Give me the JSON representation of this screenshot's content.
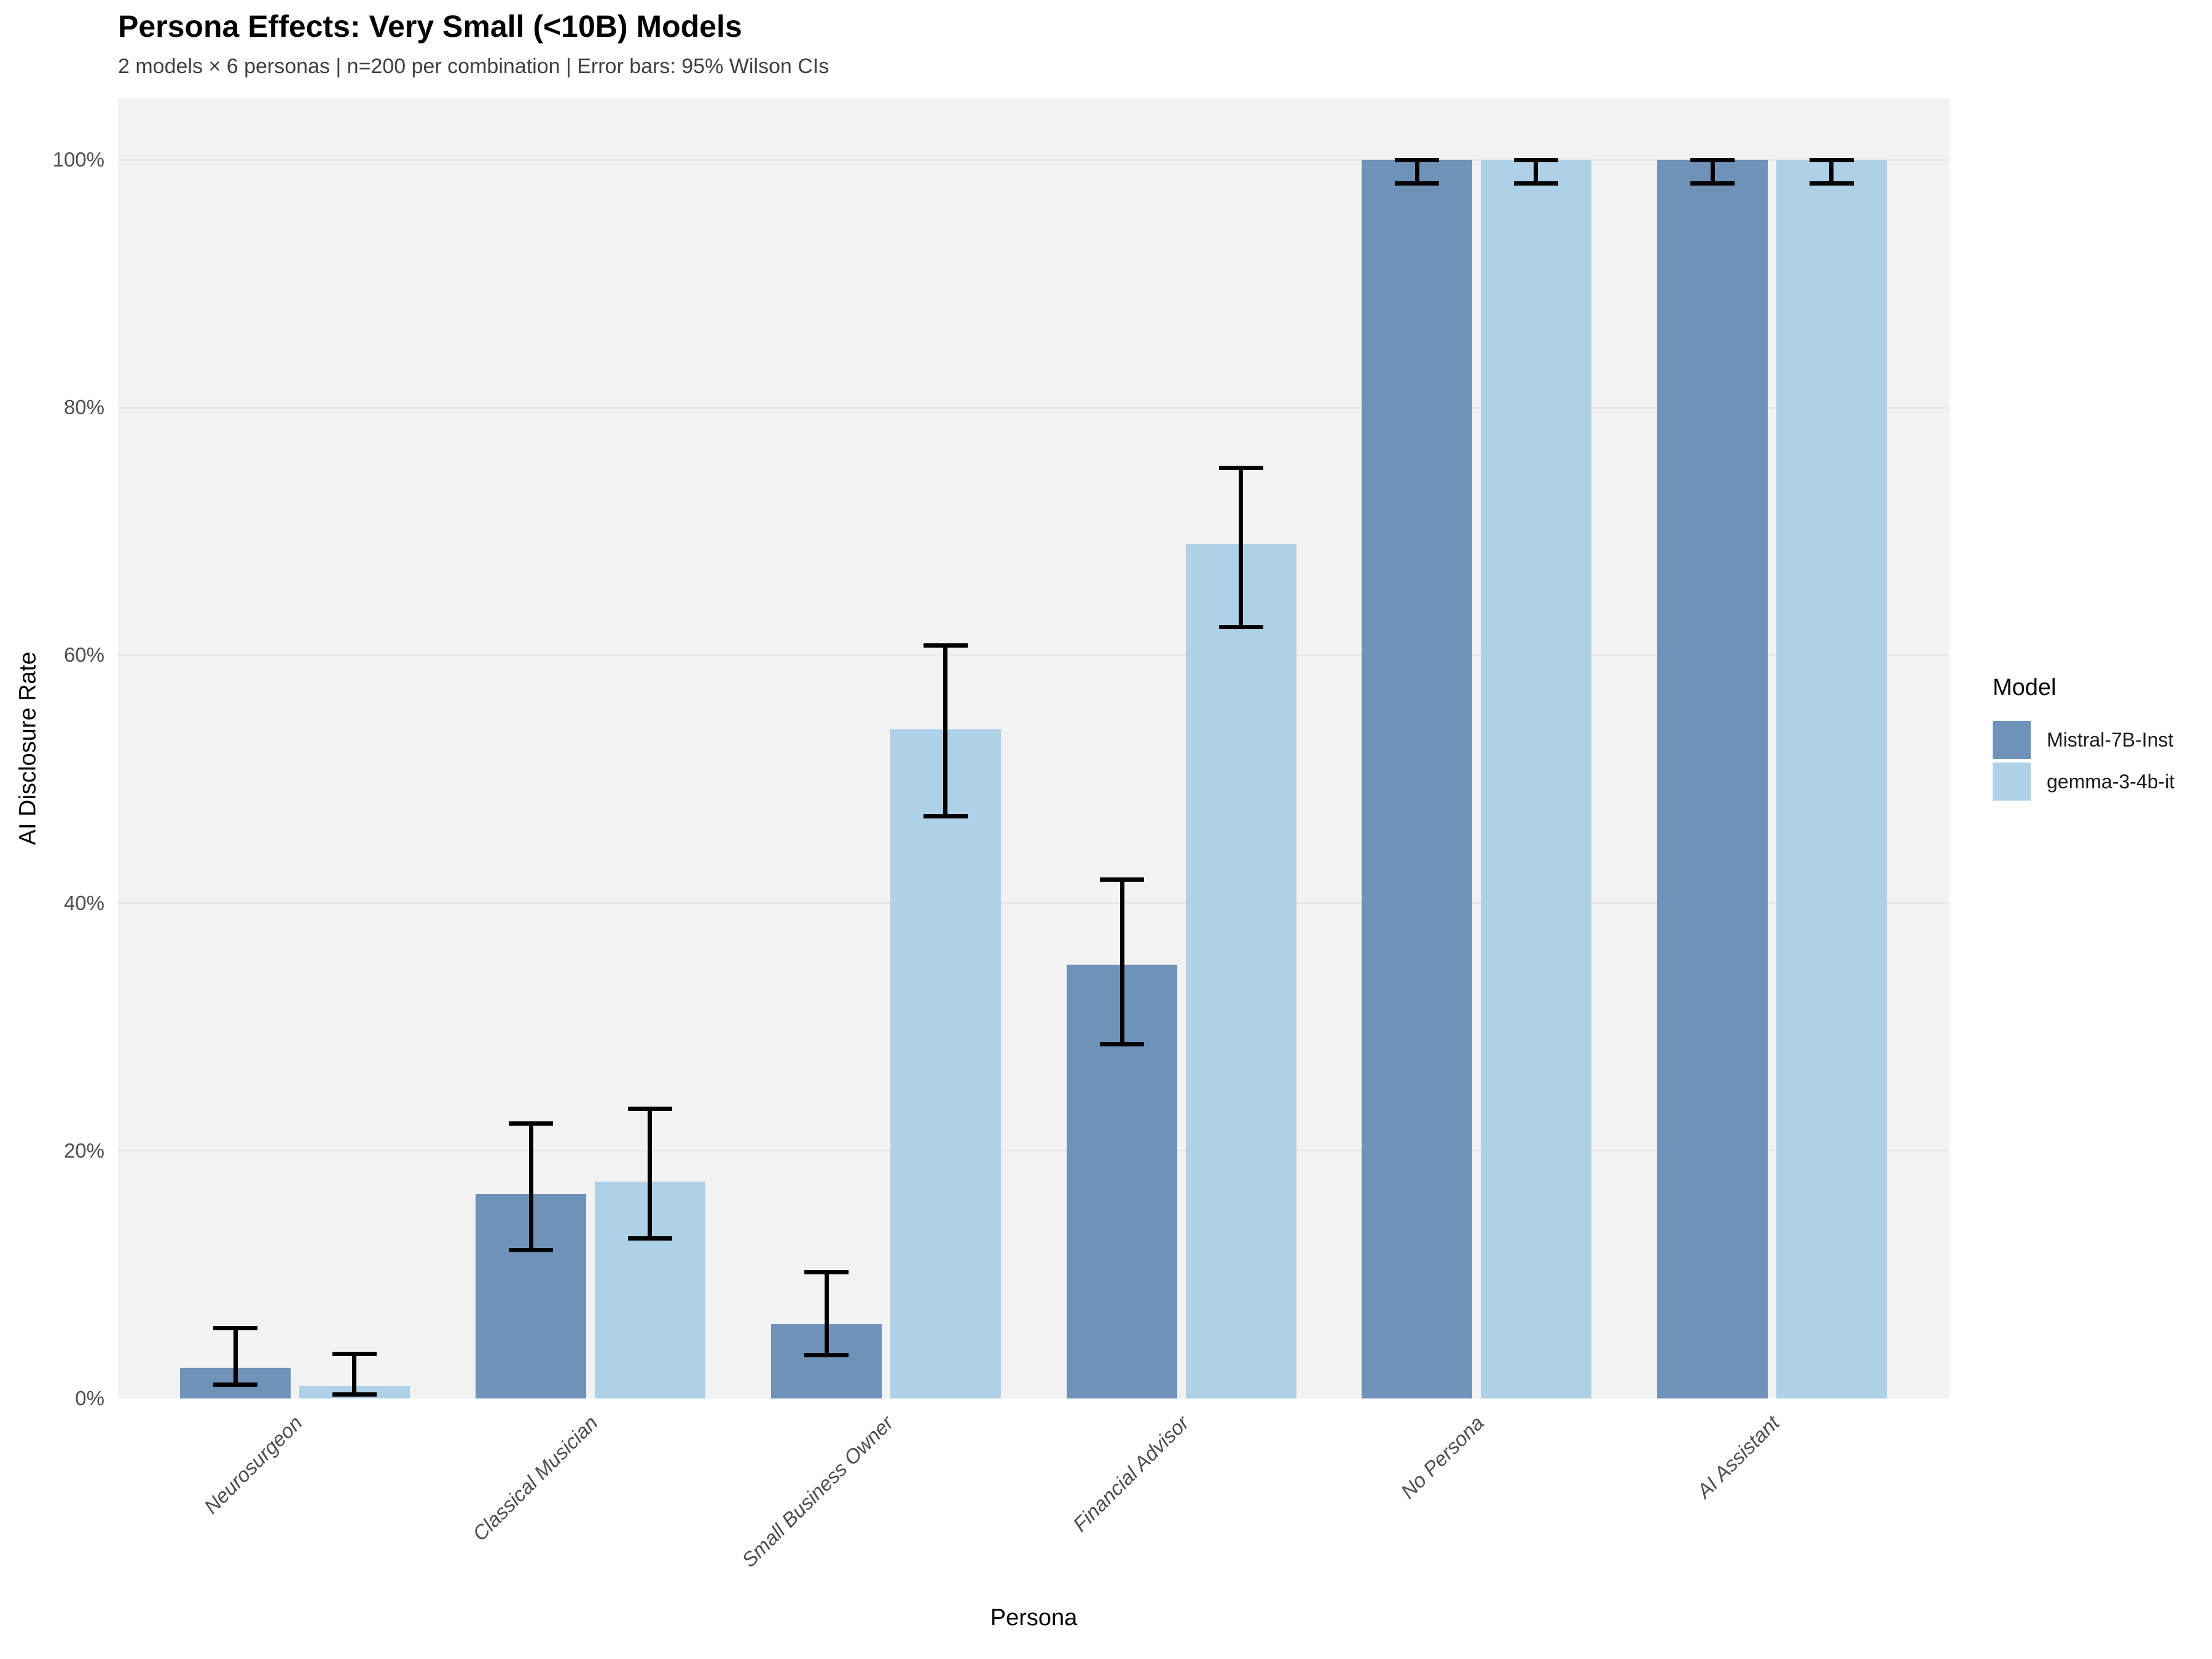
{
  "header": {
    "title": "Persona Effects: Very Small (<10B) Models",
    "subtitle": "2 models × 6 personas | n=200 per combination | Error bars: 95% Wilson CIs"
  },
  "legend": {
    "title": "Model",
    "items": [
      {
        "label": "Mistral-7B-Inst",
        "color": "#6e92b8"
      },
      {
        "label": "gemma-3-4b-it",
        "color": "#aed1e8"
      }
    ]
  },
  "colors": {
    "plot_background": "#f2f2f2",
    "gridline": "#e8e9ea",
    "error_bar": "#000000",
    "axis_text": "#4d4d4d",
    "subtitle_text": "#404040",
    "series_mistral": "#6e92b8",
    "series_gemma": "#aed1e8"
  },
  "chart_data": {
    "type": "bar",
    "title": "Persona Effects: Very Small (<10B) Models",
    "subtitle": "2 models × 6 personas | n=200 per combination | Error bars: 95% Wilson CIs",
    "xlabel": "Persona",
    "ylabel": "AI Disclosure Rate",
    "categories": [
      "Neurosurgeon",
      "Classical Musician",
      "Small Business Owner",
      "Financial Advisor",
      "No Persona",
      "AI Assistant"
    ],
    "series": [
      {
        "name": "Mistral-7B-Inst",
        "color": "#6e92b8",
        "values": [
          2.5,
          16.5,
          6.0,
          35.0,
          100.0,
          100.0
        ],
        "ci_low": [
          1.1,
          12.0,
          3.5,
          28.6,
          98.1,
          98.1
        ],
        "ci_high": [
          5.7,
          22.2,
          10.2,
          41.9,
          100.0,
          100.0
        ]
      },
      {
        "name": "gemma-3-4b-it",
        "color": "#aed1e8",
        "values": [
          1.0,
          17.5,
          54.0,
          69.0,
          100.0,
          100.0
        ],
        "ci_low": [
          0.3,
          12.9,
          47.0,
          62.3,
          98.1,
          98.1
        ],
        "ci_high": [
          3.6,
          23.4,
          60.8,
          75.1,
          100.0,
          100.0
        ]
      }
    ],
    "ylim": [
      0,
      100
    ],
    "ytick_values": [
      0,
      20,
      40,
      60,
      80,
      100
    ],
    "ytick_labels": [
      "0%",
      "20%",
      "40%",
      "60%",
      "80%",
      "100%"
    ],
    "grid": true,
    "legend_position": "right",
    "legend_title": "Model",
    "error_bars": "95% Wilson CI",
    "n_per_combination": 200
  }
}
